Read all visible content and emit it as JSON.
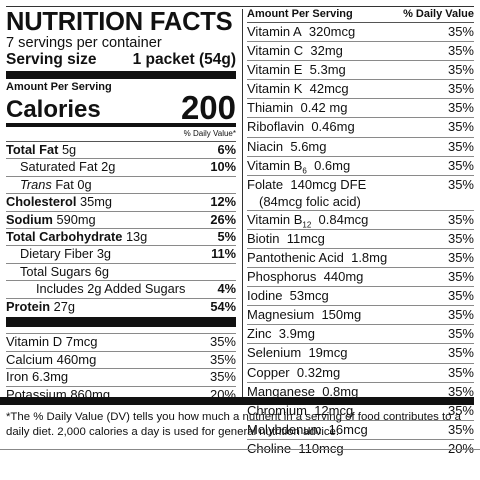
{
  "header": {
    "title": "NUTRITION FACTS",
    "servings": "7 servings per container",
    "serving_size_label": "Serving size",
    "serving_size_value": "1 packet (54g)",
    "amount_per_serving": "Amount Per Serving",
    "calories_label": "Calories",
    "calories_value": "200",
    "daily_value_heading": "% Daily Value*"
  },
  "macros": [
    {
      "name": "Total Fat",
      "amount": "5g",
      "dv": "6%"
    },
    {
      "name": "Saturated Fat",
      "amount": "2g",
      "dv": "10%"
    },
    {
      "name": "Trans",
      "name_suffix": " Fat",
      "amount": "0g",
      "dv": ""
    },
    {
      "name": "Cholesterol",
      "amount": "35mg",
      "dv": "12%"
    },
    {
      "name": "Sodium",
      "amount": "590mg",
      "dv": "26%"
    },
    {
      "name": "Total Carbohydrate",
      "amount": "13g",
      "dv": "5%"
    },
    {
      "name": "Dietary Fiber",
      "amount": "3g",
      "dv": "11%"
    },
    {
      "name": "Total Sugars",
      "amount": "6g",
      "dv": ""
    },
    {
      "name": "Includes 2g Added Sugars",
      "amount": "",
      "dv": "4%"
    },
    {
      "name": "Protein",
      "amount": "27g",
      "dv": "54%"
    }
  ],
  "left_vitamins": [
    {
      "name": "Vitamin D",
      "amount": "7mcg",
      "dv": "35%"
    },
    {
      "name": "Calcium",
      "amount": "460mg",
      "dv": "35%"
    },
    {
      "name": "Iron",
      "amount": "6.3mg",
      "dv": "35%"
    },
    {
      "name": "Potassium",
      "amount": "860mg",
      "dv": "20%"
    }
  ],
  "right_header": {
    "amount_label": "Amount Per Serving",
    "dv_label": "% Daily Value"
  },
  "right_items": [
    {
      "name": "Vitamin A",
      "amount": "320mcg",
      "dv": "35%"
    },
    {
      "name": "Vitamin C",
      "amount": "32mg",
      "dv": "35%"
    },
    {
      "name": "Vitamin E",
      "amount": "5.3mg",
      "dv": "35%"
    },
    {
      "name": "Vitamin K",
      "amount": "42mcg",
      "dv": "35%"
    },
    {
      "name": "Thiamin",
      "amount": "0.42 mg",
      "dv": "35%"
    },
    {
      "name": "Riboflavin",
      "amount": "0.46mg",
      "dv": "35%"
    },
    {
      "name": "Niacin",
      "amount": "5.6mg",
      "dv": "35%"
    },
    {
      "name": "Vitamin B",
      "sub": "6",
      "amount": "0.6mg",
      "dv": "35%"
    },
    {
      "name": "Folate",
      "amount": "140mcg DFE",
      "amount_line2": "(84mcg folic acid)",
      "dv": "35%"
    },
    {
      "name": "Vitamin B",
      "sub": "12",
      "amount": "0.84mcg",
      "dv": "35%"
    },
    {
      "name": "Biotin",
      "amount": "11mcg",
      "dv": "35%"
    },
    {
      "name": "Pantothenic Acid",
      "amount": "1.8mg",
      "dv": "35%"
    },
    {
      "name": "Phosphorus",
      "amount": "440mg",
      "dv": "35%"
    },
    {
      "name": "Iodine",
      "amount": "53mcg",
      "dv": "35%"
    },
    {
      "name": "Magnesium",
      "amount": "150mg",
      "dv": "35%"
    },
    {
      "name": "Zinc",
      "amount": "3.9mg",
      "dv": "35%"
    },
    {
      "name": "Selenium",
      "amount": "19mcg",
      "dv": "35%"
    },
    {
      "name": "Copper",
      "amount": "0.32mg",
      "dv": "35%"
    },
    {
      "name": "Manganese",
      "amount": "0.8mg",
      "dv": "35%"
    },
    {
      "name": "Chromium",
      "amount": "12mcg",
      "dv": "35%"
    },
    {
      "name": "Molybdenum",
      "amount": "16mcg",
      "dv": "35%"
    },
    {
      "name": "Choline",
      "amount": "110mcg",
      "dv": "20%"
    }
  ],
  "footnote": "*The % Daily Value (DV) tells you how  much a nutrient in a serving of food contributes to a daily diet. 2,000 calories a day is used for general nutrition advice."
}
